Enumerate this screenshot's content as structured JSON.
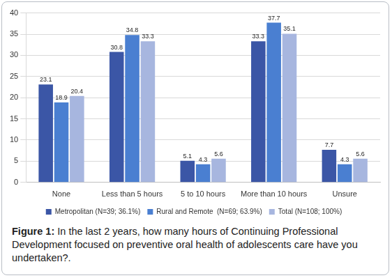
{
  "chart_data": {
    "type": "bar",
    "title": "Figure 1: In the last 2 years, how many hours of Continuing Professional Development focused on preventive oral health of adolescents care have you undertaken?.",
    "categories": [
      "None",
      "Less than 5 hours",
      "5 to 10 hours",
      "More than 10 hours",
      "Unsure"
    ],
    "series": [
      {
        "name": "Metropolitan (N=39; 36.1%)",
        "color": "#3b56a6",
        "values": [
          23.1,
          30.8,
          5.1,
          33.3,
          7.7
        ]
      },
      {
        "name": "Rural and Remote  (N=69; 63.9%)",
        "color": "#4a7fd1",
        "values": [
          18.9,
          34.8,
          4.3,
          37.7,
          4.3
        ]
      },
      {
        "name": "Total (N=108; 100%)",
        "color": "#a7b6df",
        "values": [
          20.4,
          33.3,
          5.6,
          35.1,
          5.6
        ]
      }
    ],
    "ylim": [
      0,
      40
    ],
    "yticks": [
      0,
      5,
      10,
      15,
      20,
      25,
      30,
      35,
      40
    ],
    "grid": true,
    "legend": "bottom",
    "data_labels": true
  }
}
